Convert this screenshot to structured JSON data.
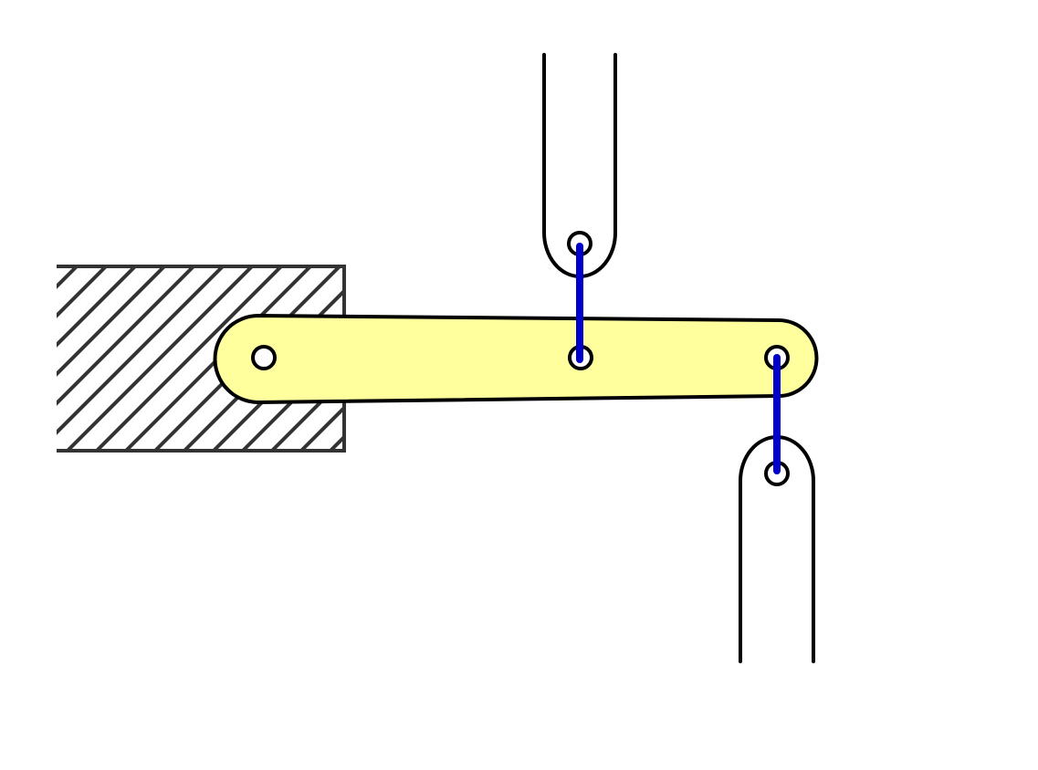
{
  "diagram": {
    "colors": {
      "background": "#ffffff",
      "outline": "#000000",
      "hatch": "#333333",
      "link_fill": "#ffff9e",
      "connector": "#0000cc",
      "pin_fill": "#ffffff"
    },
    "components": [
      "fixed-ground-block",
      "lever-link",
      "upper-slotted-rod",
      "lower-slotted-rod",
      "connector-upper",
      "connector-lower"
    ]
  }
}
